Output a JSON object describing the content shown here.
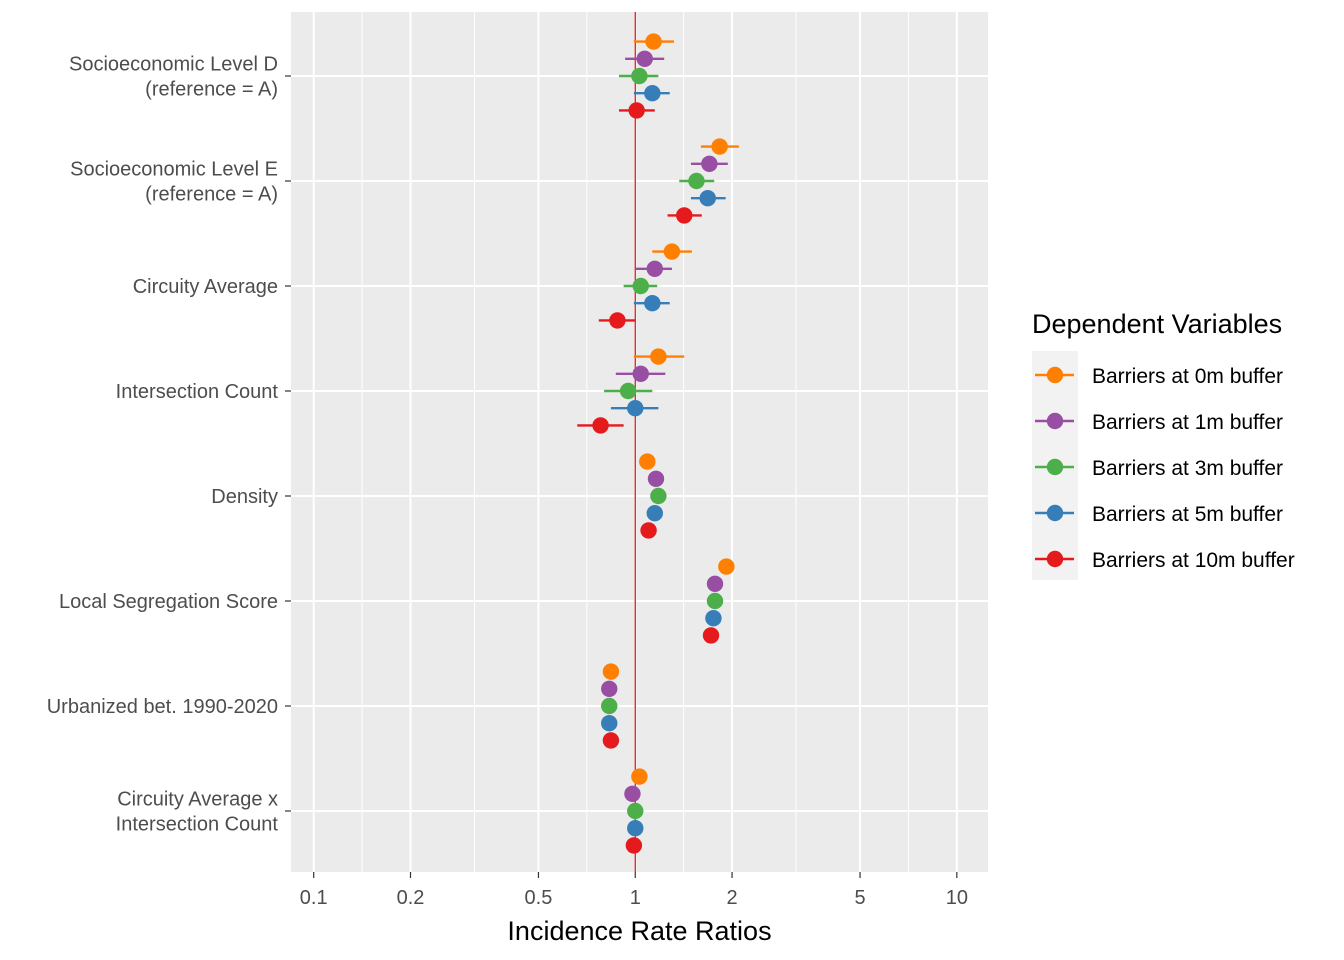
{
  "chart_data": {
    "type": "scatter",
    "subtype": "coefficient-forest-plot",
    "x_scale": "log10",
    "xlim": [
      0.085,
      12.5
    ],
    "x_ticks": [
      0.1,
      0.2,
      0.5,
      1,
      2,
      5,
      10
    ],
    "x_tick_labels": [
      "0.1",
      "0.2",
      "0.5",
      "1",
      "2",
      "5",
      "10"
    ],
    "xlabel": "Incidence Rate Ratios",
    "ylabel": "",
    "reference_line": {
      "x": 1,
      "color": "#e41a1c"
    },
    "grid": true,
    "legend": {
      "title": "Dependent Variables",
      "position": "right"
    },
    "terms": [
      [
        "Socioeconomic Level D",
        "(reference = A)"
      ],
      [
        "Socioeconomic Level E",
        "(reference = A)"
      ],
      [
        "Circuity Average"
      ],
      [
        "Intersection Count"
      ],
      [
        "Density"
      ],
      [
        "Local Segregation Score"
      ],
      [
        "Urbanized bet. 1990-2020"
      ],
      [
        "Circuity Average x",
        "Intersection Count"
      ]
    ],
    "series": [
      {
        "name": "Barriers at 0m buffer",
        "color": "#ff7f00",
        "estimates": [
          1.14,
          1.83,
          1.3,
          1.18,
          1.09,
          1.92,
          0.84,
          1.03
        ],
        "ci_low": [
          0.99,
          1.6,
          1.13,
          0.99,
          null,
          null,
          null,
          null
        ],
        "ci_high": [
          1.32,
          2.1,
          1.5,
          1.42,
          null,
          null,
          null,
          null
        ]
      },
      {
        "name": "Barriers at 1m buffer",
        "color": "#984ea3",
        "estimates": [
          1.07,
          1.7,
          1.15,
          1.04,
          1.16,
          1.77,
          0.83,
          0.98
        ],
        "ci_low": [
          0.93,
          1.49,
          1.0,
          0.87,
          null,
          null,
          null,
          null
        ],
        "ci_high": [
          1.23,
          1.94,
          1.3,
          1.24,
          null,
          null,
          null,
          null
        ]
      },
      {
        "name": "Barriers at 3m buffer",
        "color": "#4daf4a",
        "estimates": [
          1.03,
          1.55,
          1.04,
          0.95,
          1.18,
          1.77,
          0.83,
          1.0
        ],
        "ci_low": [
          0.89,
          1.37,
          0.92,
          0.8,
          null,
          null,
          null,
          null
        ],
        "ci_high": [
          1.18,
          1.76,
          1.17,
          1.13,
          null,
          null,
          null,
          null
        ]
      },
      {
        "name": "Barriers at 5m buffer",
        "color": "#377eb8",
        "estimates": [
          1.13,
          1.68,
          1.13,
          1.0,
          1.15,
          1.75,
          0.83,
          1.0
        ],
        "ci_low": [
          0.99,
          1.49,
          0.99,
          0.84,
          null,
          null,
          null,
          null
        ],
        "ci_high": [
          1.28,
          1.91,
          1.28,
          1.18,
          null,
          null,
          null,
          null
        ]
      },
      {
        "name": "Barriers at 10m buffer",
        "color": "#e41a1c",
        "estimates": [
          1.01,
          1.42,
          0.88,
          0.78,
          1.1,
          1.72,
          0.84,
          0.99
        ],
        "ci_low": [
          0.89,
          1.26,
          0.77,
          0.66,
          null,
          null,
          null,
          null
        ],
        "ci_high": [
          1.15,
          1.61,
          1.0,
          0.92,
          null,
          null,
          null,
          null
        ]
      }
    ]
  }
}
